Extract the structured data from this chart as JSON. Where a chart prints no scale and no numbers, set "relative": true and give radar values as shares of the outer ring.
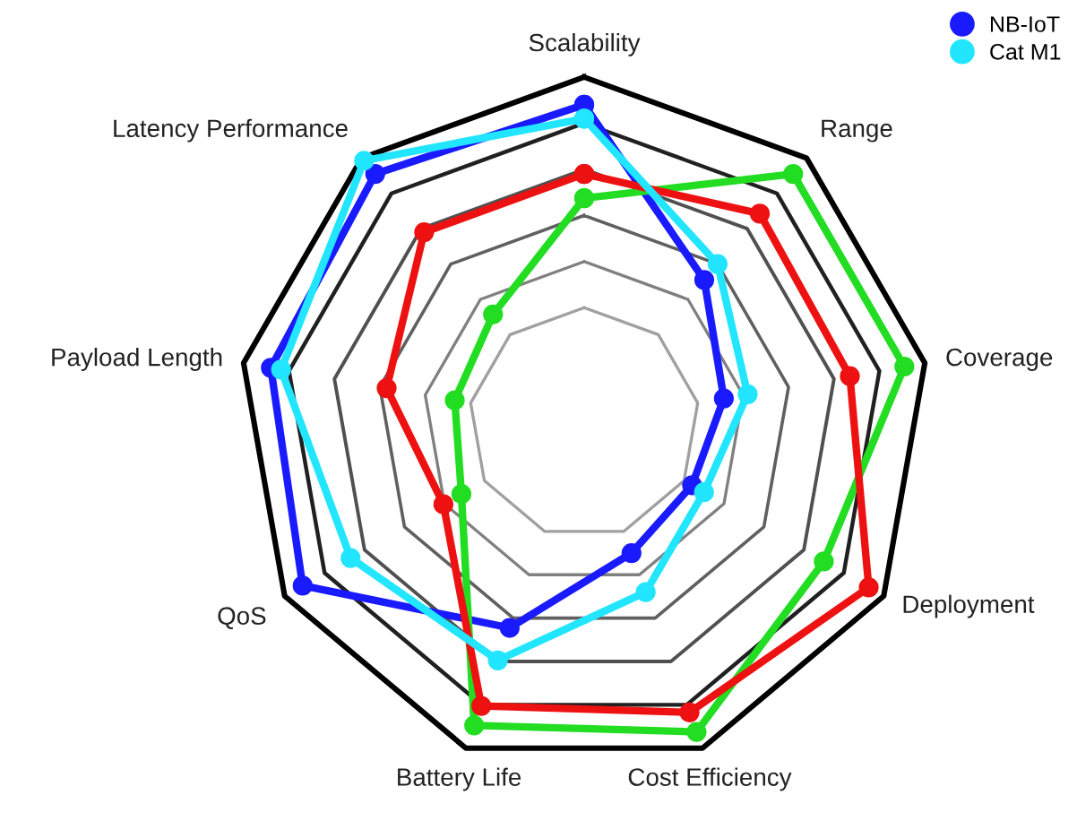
{
  "chart_data": {
    "type": "radar",
    "relative": true,
    "grid": true,
    "legend": "top right",
    "marker": "circle",
    "line_style": "solid",
    "categories": [
      "Scalability",
      "Range",
      "Coverage",
      "Deployment",
      "Cost Efficiency",
      "Battery Life",
      "QoS",
      "Payload Length",
      "Latency Performance"
    ],
    "series": [
      {
        "name": "NB-IoT",
        "color": "#1a1aff",
        "values": [
          0.92,
          0.54,
          0.41,
          0.36,
          0.4,
          0.63,
          0.94,
          0.92,
          0.94
        ]
      },
      {
        "color": "#22dd22",
        "values": [
          0.65,
          0.94,
          0.94,
          0.8,
          0.95,
          0.93,
          0.41,
          0.38,
          0.41
        ]
      },
      {
        "color": "#ee1111",
        "values": [
          0.72,
          0.79,
          0.78,
          0.95,
          0.89,
          0.87,
          0.47,
          0.58,
          0.72
        ]
      },
      {
        "name": "Cat M1",
        "color": "#22e5ff",
        "values": [
          0.88,
          0.6,
          0.48,
          0.4,
          0.52,
          0.73,
          0.78,
          0.89,
          0.99
        ]
      }
    ]
  }
}
